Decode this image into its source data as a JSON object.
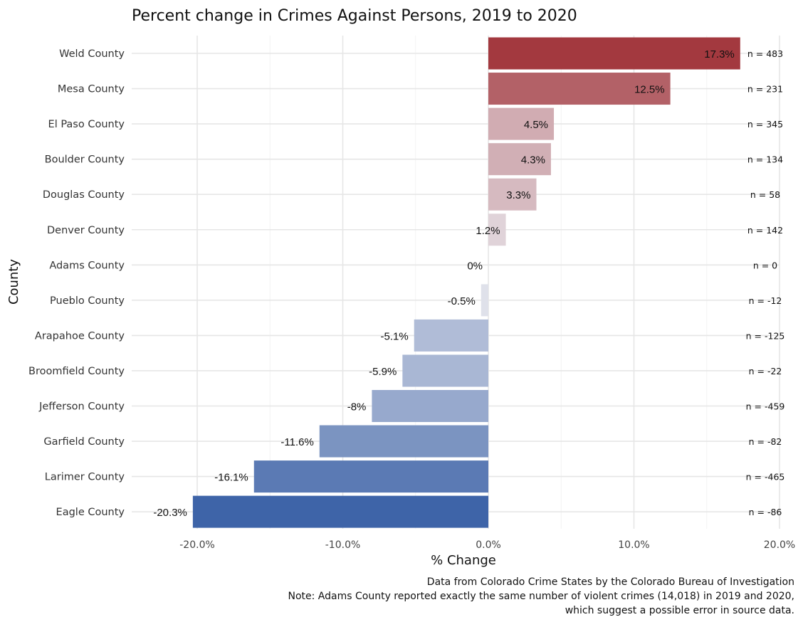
{
  "chart_data": {
    "type": "bar",
    "orientation": "horizontal",
    "title": "Percent change in Crimes Against Persons, 2019 to 2020",
    "xlabel": "% Change",
    "ylabel": "County",
    "xlim": [
      -0.245,
      0.2
    ],
    "xticks": [
      -0.2,
      -0.1,
      0.0,
      0.1,
      0.2
    ],
    "xtick_labels": [
      "-20.0%",
      "-10.0%",
      "0.0%",
      "10.0%",
      "20.0%"
    ],
    "grid": true,
    "colors": {
      "negative": "#3E64A8",
      "neutral": "#E8E8EE",
      "positive": "#A3393F"
    },
    "categories": [
      "Weld County",
      "Mesa County",
      "El Paso County",
      "Boulder County",
      "Douglas County",
      "Denver County",
      "Adams County",
      "Pueblo County",
      "Arapahoe County",
      "Broomfield County",
      "Jefferson County",
      "Garfield County",
      "Larimer County",
      "Eagle County"
    ],
    "values": [
      0.173,
      0.125,
      0.045,
      0.043,
      0.033,
      0.012,
      0.0,
      -0.005,
      -0.051,
      -0.059,
      -0.08,
      -0.116,
      -0.161,
      -0.203
    ],
    "value_labels": [
      "17.3%",
      "12.5%",
      "4.5%",
      "4.3%",
      "3.3%",
      "1.2%",
      "0%",
      "-0.5%",
      "-5.1%",
      "-5.9%",
      "-8%",
      "-11.6%",
      "-16.1%",
      "-20.3%"
    ],
    "n_labels": [
      "n = 483",
      "n = 231",
      "n = 345",
      "n = 134",
      "n = 58",
      "n = 142",
      "n = 0",
      "n = -12",
      "n = -125",
      "n = -22",
      "n = -459",
      "n = -82",
      "n = -465",
      "n = -86"
    ],
    "caption": [
      "Data from Colorado Crime States by the Colorado Bureau of Investigation",
      "Note: Adams County reported exactly the same number of violent crimes (14,018) in 2019 and 2020,",
      "which suggest a possible error in source data."
    ]
  }
}
